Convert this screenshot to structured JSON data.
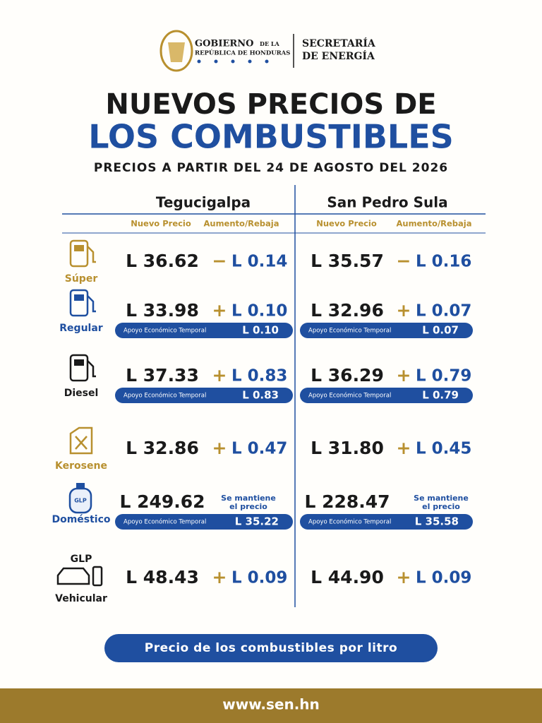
{
  "header": {
    "gov_name": "GOBIERNO",
    "gov_prep": "DE LA",
    "gov_country": "REPÚBLICA DE HONDURAS",
    "secretaria_line1": "SECRETARÍA",
    "secretaria_line2": "DE ENERGÍA"
  },
  "title": {
    "line1": "NUEVOS PRECIOS DE",
    "line2": "LOS COMBUSTIBLES",
    "subtitle": "PRECIOS A PARTIR DEL 24 DE AGOSTO DEL 2026"
  },
  "table": {
    "cities": [
      "Tegucigalpa",
      "San Pedro Sula"
    ],
    "subheaders": [
      "Nuevo Precio",
      "Aumento/Rebaja"
    ],
    "support_label": "Apoyo Económico Temporal",
    "rows": [
      {
        "label": [
          "Súper"
        ],
        "cells": [
          {
            "price": "L 36.62",
            "sign": "−",
            "change": "L 0.14"
          },
          {
            "price": "L 35.57",
            "sign": "−",
            "change": "L 0.16"
          }
        ]
      },
      {
        "label": [
          "Regular"
        ],
        "cells": [
          {
            "price": "L 33.98",
            "sign": "+",
            "change": "L 0.10",
            "support": "L 0.10"
          },
          {
            "price": "L 32.96",
            "sign": "+",
            "change": "L 0.07",
            "support": "L 0.07"
          }
        ]
      },
      {
        "label": [
          "Diesel"
        ],
        "cells": [
          {
            "price": "L 37.33",
            "sign": "+",
            "change": "L 0.83",
            "support": "L 0.83"
          },
          {
            "price": "L 36.29",
            "sign": "+",
            "change": "L 0.79",
            "support": "L 0.79"
          }
        ]
      },
      {
        "label": [
          "Kerosene"
        ],
        "cells": [
          {
            "price": "L 32.86",
            "sign": "+",
            "change": "L 0.47"
          },
          {
            "price": "L 31.80",
            "sign": "+",
            "change": "L 0.45"
          }
        ]
      },
      {
        "label": [
          "Doméstico"
        ],
        "icon_text": "GLP",
        "cells": [
          {
            "price": "L 249.62",
            "change_lines": [
              "Se mantiene",
              "el precio"
            ],
            "support": "L 35.22"
          },
          {
            "price": "L 228.47",
            "change_lines": [
              "Se mantiene",
              "el precio"
            ],
            "support": "L 35.58"
          }
        ]
      },
      {
        "label": [
          "GLP",
          "Vehicular"
        ],
        "cells": [
          {
            "price": "L 48.43",
            "sign": "+",
            "change": "L 0.09"
          },
          {
            "price": "L 44.90",
            "sign": "+",
            "change": "L 0.09"
          }
        ]
      }
    ]
  },
  "footer": {
    "note": "Precio de los combustibles por litro",
    "url": "www.sen.hn"
  }
}
